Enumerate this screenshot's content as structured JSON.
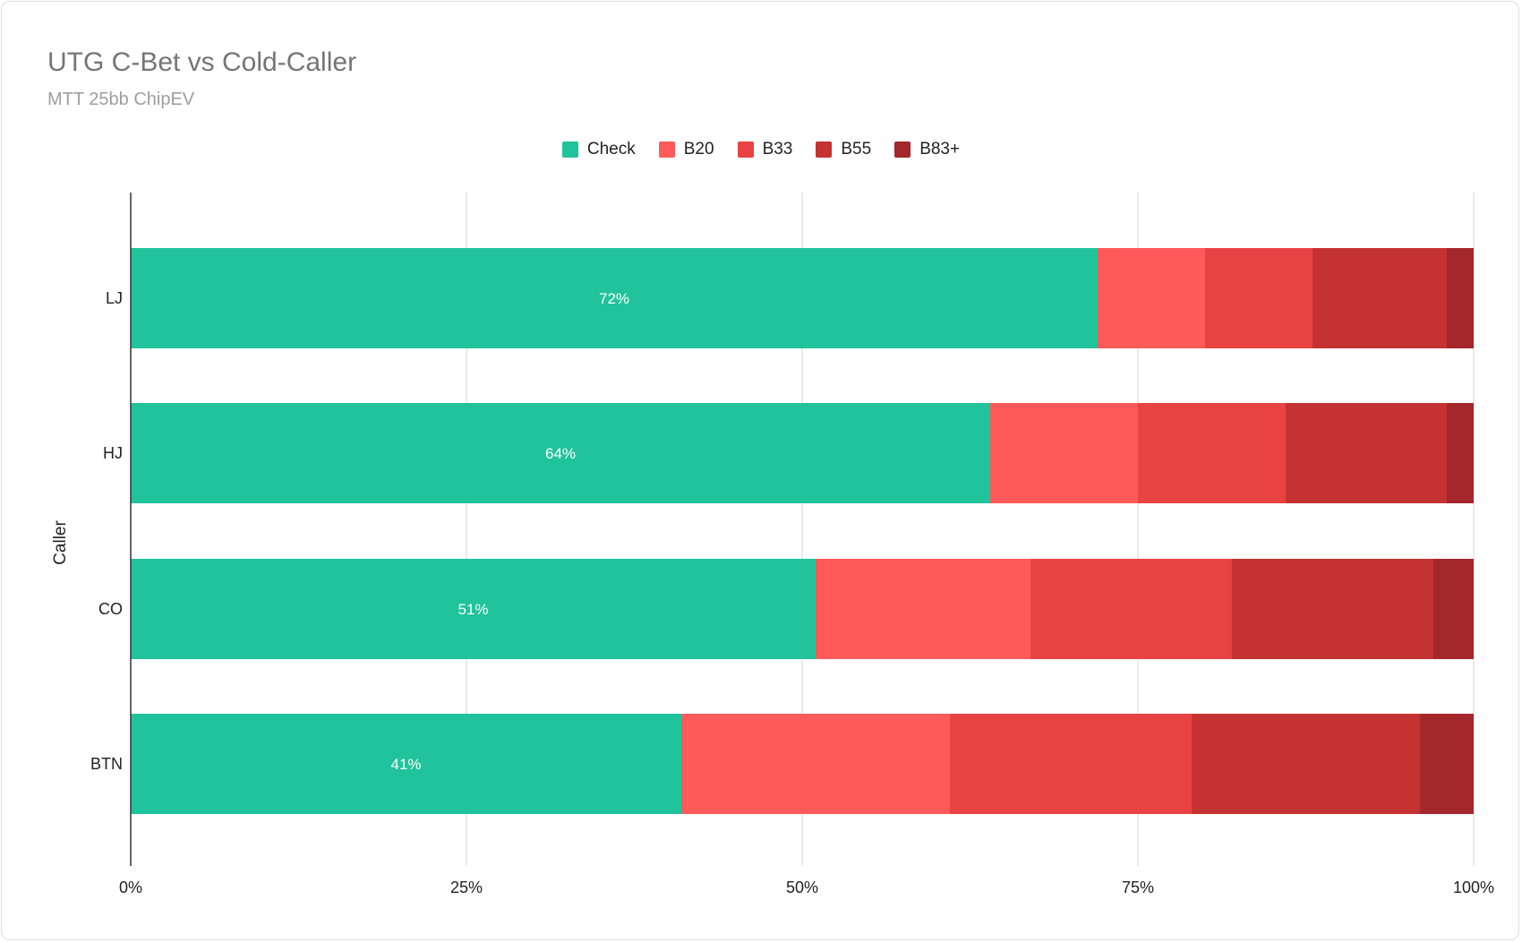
{
  "chart_data": {
    "type": "bar",
    "orientation": "horizontal",
    "stacked": true,
    "title": "UTG C-Bet vs Cold-Caller",
    "subtitle": "MTT 25bb ChipEV",
    "xlabel": "",
    "ylabel": "Caller",
    "categories": [
      "LJ",
      "HJ",
      "CO",
      "BTN"
    ],
    "xlim": [
      0,
      100
    ],
    "xticks": [
      "0%",
      "25%",
      "50%",
      "75%",
      "100%"
    ],
    "grid": true,
    "legend_position": "top",
    "series": [
      {
        "name": "Check",
        "color": "#20c39b",
        "values": [
          72,
          64,
          51,
          41
        ],
        "labels": [
          "72%",
          "64%",
          "51%",
          "41%"
        ]
      },
      {
        "name": "B20",
        "color": "#ff5a5a",
        "values": [
          8,
          11,
          16,
          20
        ]
      },
      {
        "name": "B33",
        "color": "#e84242",
        "values": [
          8,
          11,
          15,
          18
        ]
      },
      {
        "name": "B55",
        "color": "#c53232",
        "values": [
          10,
          12,
          15,
          17
        ]
      },
      {
        "name": "B83+",
        "color": "#a3272b",
        "values": [
          2,
          2,
          3,
          4
        ]
      }
    ]
  }
}
